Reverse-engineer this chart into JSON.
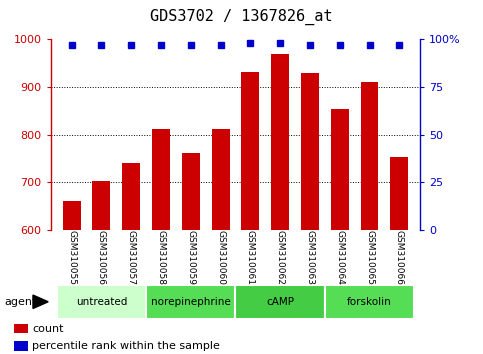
{
  "title": "GDS3702 / 1367826_at",
  "samples": [
    "GSM310055",
    "GSM310056",
    "GSM310057",
    "GSM310058",
    "GSM310059",
    "GSM310060",
    "GSM310061",
    "GSM310062",
    "GSM310063",
    "GSM310064",
    "GSM310065",
    "GSM310066"
  ],
  "bar_values": [
    660,
    703,
    740,
    812,
    762,
    812,
    930,
    968,
    928,
    853,
    910,
    753
  ],
  "percentile_values": [
    97,
    97,
    97,
    97,
    97,
    97,
    98,
    98,
    97,
    97,
    97,
    97
  ],
  "bar_color": "#cc0000",
  "dot_color": "#0000cc",
  "ylim_left": [
    600,
    1000
  ],
  "ylim_right": [
    0,
    100
  ],
  "yticks_left": [
    600,
    700,
    800,
    900,
    1000
  ],
  "yticks_right": [
    0,
    25,
    50,
    75,
    100
  ],
  "ytick_labels_right": [
    "0",
    "25",
    "50",
    "75",
    "100%"
  ],
  "grid_color": "#000000",
  "groups": [
    {
      "label": "untreated",
      "start": 0,
      "end": 3,
      "color": "#ccffcc"
    },
    {
      "label": "norepinephrine",
      "start": 3,
      "end": 6,
      "color": "#55dd55"
    },
    {
      "label": "cAMP",
      "start": 6,
      "end": 9,
      "color": "#44cc44"
    },
    {
      "label": "forskolin",
      "start": 9,
      "end": 12,
      "color": "#55dd55"
    }
  ],
  "agent_label": "agent",
  "legend_count_color": "#cc0000",
  "legend_dot_color": "#0000cc",
  "legend_count_label": "count",
  "legend_percentile_label": "percentile rank within the sample",
  "bg_color": "#ffffff",
  "plot_bg_color": "#ffffff",
  "sample_bg_color": "#c8c8c8",
  "title_fontsize": 11,
  "tick_fontsize": 8,
  "label_fontsize": 8
}
